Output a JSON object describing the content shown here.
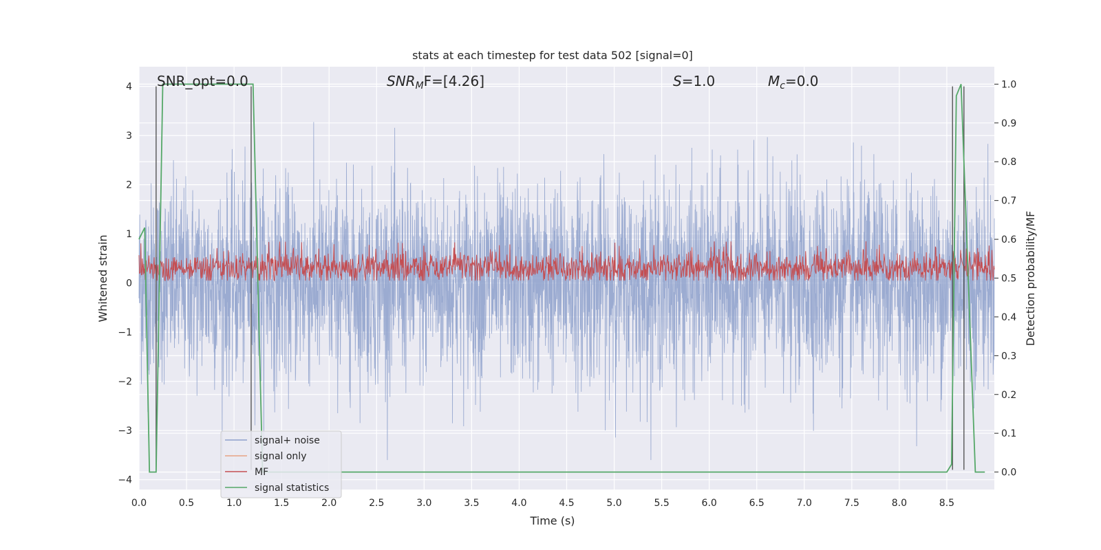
{
  "chart_data": {
    "type": "line",
    "title": "stats at each timestep for test data 502 [signal=0]",
    "xlabel": "Time (s)",
    "ylabel": "Whitened strain",
    "y2label": "Detection probability/MF",
    "xlim": [
      0.0,
      9.0
    ],
    "ylim": [
      -4.2,
      4.4
    ],
    "y2lim": [
      -0.045,
      1.045
    ],
    "xticks": [
      0.0,
      0.5,
      1.0,
      1.5,
      2.0,
      2.5,
      3.0,
      3.5,
      4.0,
      4.5,
      5.0,
      5.5,
      6.0,
      6.5,
      7.0,
      7.5,
      8.0,
      8.5
    ],
    "xtick_labels": [
      "0.0",
      "0.5",
      "1.0",
      "1.5",
      "2.0",
      "2.5",
      "3.0",
      "3.5",
      "4.0",
      "4.5",
      "5.0",
      "5.5",
      "6.0",
      "6.5",
      "7.0",
      "7.5",
      "8.0",
      "8.5"
    ],
    "yticks": [
      4,
      3,
      2,
      1,
      0,
      -1,
      -2,
      -3,
      -4
    ],
    "ytick_labels": [
      "4",
      "3",
      "2",
      "1",
      "0",
      "−1",
      "−2",
      "−3",
      "−4"
    ],
    "y2ticks": [
      1.0,
      0.9,
      0.8,
      0.7,
      0.6,
      0.5,
      0.4,
      0.3,
      0.2,
      0.1,
      0.0
    ],
    "y2tick_labels": [
      "1.0",
      "0.9",
      "0.8",
      "0.7",
      "0.6",
      "0.5",
      "0.4",
      "0.3",
      "0.2",
      "0.1",
      "0.0"
    ],
    "grid": true,
    "legend_position": "lower-left",
    "annotations": {
      "snr_opt": "SNR_opt=0.0",
      "snr_mf": "SNR",
      "snr_mf_sub": "M",
      "snr_mf_rest": "F=[4.26]",
      "s_label": "S",
      "s_value": "=1.0",
      "mc_label": "M",
      "mc_sub": "c",
      "mc_value": "=0.0"
    },
    "series": [
      {
        "name": "signal+ noise",
        "color": "#8da0cb",
        "axis": "left",
        "description_values": {
          "envelope_max": 3.7,
          "envelope_min": -3.6
        }
      },
      {
        "name": "signal only",
        "color": "#e8a383",
        "axis": "left",
        "values": []
      },
      {
        "name": "MF",
        "color": "#c44e52",
        "axis": "left",
        "description_values": {
          "baseline": 0.05,
          "peak": 0.87
        }
      },
      {
        "name": "signal statistics",
        "color": "#55a868",
        "axis": "right",
        "x": [
          0.0,
          0.06,
          0.11,
          0.18,
          0.25,
          0.35,
          1.15,
          1.2,
          1.3,
          8.5,
          8.55,
          8.6,
          8.65,
          8.8,
          8.9
        ],
        "y": [
          0.6,
          0.63,
          0.0,
          0.0,
          1.0,
          1.0,
          1.0,
          1.0,
          0.0,
          0.0,
          0.02,
          0.97,
          1.0,
          0.0,
          0.0
        ]
      }
    ],
    "vlines_x": [
      0.18,
      1.18,
      8.56,
      8.68
    ]
  }
}
